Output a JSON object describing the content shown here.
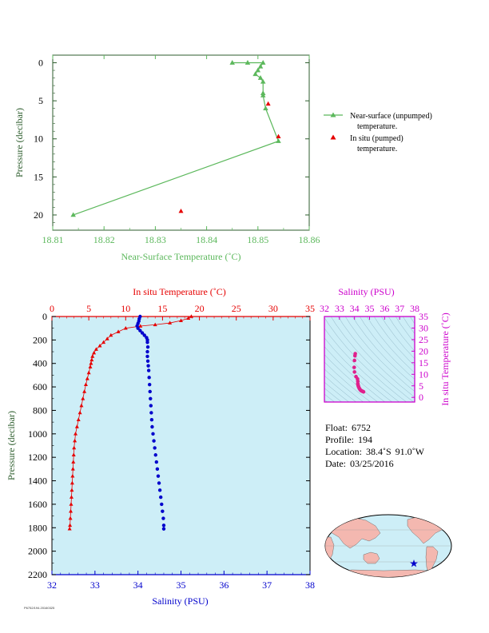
{
  "colors": {
    "near_surface": "#5cb85c",
    "in_situ_temp": "#e60000",
    "salinity": "#0000cc",
    "salinity_axis": "#cc00cc",
    "pressure_axis": "#2e5e2e",
    "profile_bg": "#cdeef7",
    "land": "#f4b8b0",
    "ocean": "#cdeef7"
  },
  "chart_data": [
    {
      "id": "near_surface_plot",
      "type": "line",
      "xlabel": "Near-Surface Temperature (˚C)",
      "ylabel": "Pressure (decibar)",
      "xlim": [
        18.81,
        18.86
      ],
      "ylim": [
        22,
        -1
      ],
      "xticks": [
        18.81,
        18.82,
        18.83,
        18.84,
        18.85,
        18.86
      ],
      "xtick_labels": [
        "18.81",
        "18.82",
        "18.83",
        "18.84",
        "18.85",
        "18.86"
      ],
      "yticks": [
        0,
        5,
        10,
        15,
        20
      ],
      "ytick_labels": [
        "0",
        "5",
        "10",
        "15",
        "20"
      ],
      "series": [
        {
          "name": "Near-surface (unpumped) temperature.",
          "marker": "triangle",
          "line": true,
          "points": [
            [
              18.845,
              0
            ],
            [
              18.848,
              0
            ],
            [
              18.851,
              0
            ],
            [
              18.8505,
              0.5
            ],
            [
              18.85,
              1
            ],
            [
              18.8495,
              1.5
            ],
            [
              18.8505,
              2
            ],
            [
              18.851,
              2.5
            ],
            [
              18.851,
              4
            ],
            [
              18.851,
              4.3
            ],
            [
              18.8515,
              6
            ],
            [
              18.854,
              10.3
            ],
            [
              18.814,
              20
            ]
          ]
        },
        {
          "name": "In situ (pumped) temperature.",
          "marker": "triangle",
          "line": false,
          "points": [
            [
              18.852,
              5.4
            ],
            [
              18.854,
              9.7
            ],
            [
              18.835,
              19.5
            ]
          ]
        }
      ],
      "legend": [
        "Near-surface (unpumped)",
        "temperature.",
        "In situ (pumped)",
        "temperature."
      ],
      "legend_placement": "right",
      "grid": false
    },
    {
      "id": "profile_plot",
      "type": "line",
      "xlabel_top": "In situ Temperature (˚C)",
      "xlabel_bottom": "Salinity (PSU)",
      "ylabel": "Pressure (decibar)",
      "temp_lim": [
        0,
        35
      ],
      "sal_lim": [
        32,
        38
      ],
      "pressure_lim": [
        0,
        2200
      ],
      "temp_ticks": [
        0,
        5,
        10,
        15,
        20,
        25,
        30,
        35
      ],
      "temp_tick_labels": [
        "0",
        "5",
        "10",
        "15",
        "20",
        "25",
        "30",
        "35"
      ],
      "sal_ticks": [
        32,
        33,
        34,
        35,
        36,
        37,
        38
      ],
      "sal_tick_labels": [
        "32",
        "33",
        "34",
        "35",
        "36",
        "37",
        "38"
      ],
      "pressure_ticks": [
        0,
        200,
        400,
        600,
        800,
        1000,
        1200,
        1400,
        1600,
        1800,
        2000,
        2200
      ],
      "pressure_tick_labels": [
        "0",
        "200",
        "400",
        "600",
        "800",
        "1000",
        "1200",
        "1400",
        "1600",
        "1800",
        "2000",
        "2200"
      ],
      "series": [
        {
          "name": "In situ Temperature",
          "marker": "triangle",
          "points": [
            [
              18.9,
              0
            ],
            [
              18.5,
              15
            ],
            [
              17.5,
              35
            ],
            [
              16,
              55
            ],
            [
              14,
              70
            ],
            [
              12,
              82
            ],
            [
              10,
              100
            ],
            [
              9,
              130
            ],
            [
              8,
              160
            ],
            [
              7.5,
              190
            ],
            [
              7,
              220
            ],
            [
              6.5,
              250
            ],
            [
              6,
              280
            ],
            [
              5.7,
              310
            ],
            [
              5.5,
              340
            ],
            [
              5.4,
              370
            ],
            [
              5.3,
              400
            ],
            [
              5.2,
              430
            ],
            [
              5,
              480
            ],
            [
              4.8,
              530
            ],
            [
              4.6,
              580
            ],
            [
              4.4,
              640
            ],
            [
              4.2,
              700
            ],
            [
              4,
              760
            ],
            [
              3.8,
              820
            ],
            [
              3.6,
              880
            ],
            [
              3.4,
              940
            ],
            [
              3.2,
              1000
            ],
            [
              3.1,
              1060
            ],
            [
              3,
              1120
            ],
            [
              2.95,
              1180
            ],
            [
              2.9,
              1240
            ],
            [
              2.85,
              1300
            ],
            [
              2.8,
              1360
            ],
            [
              2.75,
              1420
            ],
            [
              2.7,
              1480
            ],
            [
              2.65,
              1540
            ],
            [
              2.6,
              1600
            ],
            [
              2.55,
              1660
            ],
            [
              2.5,
              1720
            ],
            [
              2.45,
              1780
            ],
            [
              2.4,
              1810
            ]
          ]
        },
        {
          "name": "Salinity",
          "marker": "circle",
          "points": [
            [
              34.05,
              0
            ],
            [
              34.03,
              20
            ],
            [
              34.02,
              40
            ],
            [
              34.0,
              60
            ],
            [
              33.98,
              80
            ],
            [
              34.0,
              100
            ],
            [
              34.05,
              120
            ],
            [
              34.1,
              140
            ],
            [
              34.15,
              160
            ],
            [
              34.2,
              180
            ],
            [
              34.22,
              200
            ],
            [
              34.22,
              220
            ],
            [
              34.23,
              260
            ],
            [
              34.22,
              300
            ],
            [
              34.22,
              340
            ],
            [
              34.23,
              380
            ],
            [
              34.24,
              420
            ],
            [
              34.25,
              460
            ],
            [
              34.26,
              520
            ],
            [
              34.27,
              580
            ],
            [
              34.28,
              640
            ],
            [
              34.29,
              700
            ],
            [
              34.3,
              760
            ],
            [
              34.31,
              820
            ],
            [
              34.32,
              880
            ],
            [
              34.33,
              940
            ],
            [
              34.35,
              1000
            ],
            [
              34.37,
              1060
            ],
            [
              34.39,
              1120
            ],
            [
              34.41,
              1180
            ],
            [
              34.43,
              1240
            ],
            [
              34.45,
              1300
            ],
            [
              34.47,
              1360
            ],
            [
              34.49,
              1420
            ],
            [
              34.51,
              1480
            ],
            [
              34.53,
              1540
            ],
            [
              34.55,
              1600
            ],
            [
              34.57,
              1660
            ],
            [
              34.59,
              1720
            ],
            [
              34.6,
              1780
            ],
            [
              34.6,
              1810
            ]
          ]
        }
      ],
      "grid": false
    },
    {
      "id": "ts_plot",
      "type": "scatter",
      "xlabel": "Salinity (PSU)",
      "ylabel": "In situ Temperature (˚C)",
      "xlim": [
        32,
        38
      ],
      "ylim": [
        -2,
        35
      ],
      "xticks": [
        32,
        33,
        34,
        35,
        36,
        37,
        38
      ],
      "xtick_labels": [
        "32",
        "33",
        "34",
        "35",
        "36",
        "37",
        "38"
      ],
      "yticks": [
        0,
        5,
        10,
        15,
        20,
        25,
        30,
        35
      ],
      "ytick_labels": [
        "0",
        "5",
        "10",
        "15",
        "20",
        "25",
        "30",
        "35"
      ],
      "series": [
        {
          "name": "T-S profile",
          "marker": "circle",
          "points": [
            [
              34.05,
              18.9
            ],
            [
              34.03,
              18
            ],
            [
              34.0,
              16
            ],
            [
              33.98,
              13
            ],
            [
              34.0,
              11
            ],
            [
              34.1,
              9
            ],
            [
              34.2,
              8
            ],
            [
              34.22,
              7
            ],
            [
              34.22,
              6
            ],
            [
              34.23,
              5.5
            ],
            [
              34.25,
              5
            ],
            [
              34.27,
              4.6
            ],
            [
              34.3,
              4.2
            ],
            [
              34.33,
              3.8
            ],
            [
              34.37,
              3.4
            ],
            [
              34.41,
              3.1
            ],
            [
              34.45,
              2.9
            ],
            [
              34.5,
              2.7
            ],
            [
              34.55,
              2.6
            ],
            [
              34.6,
              2.4
            ]
          ]
        }
      ],
      "grid": false
    }
  ],
  "float_info": {
    "float_label": "Float:",
    "float_value": "6752",
    "profile_label": "Profile:",
    "profile_value": "194",
    "location_label": "Location:",
    "location_lat": "38.4˚S",
    "location_lon": "91.0˚W",
    "date_label": "Date:",
    "date_value": "03/25/2016"
  },
  "map": {
    "marker_symbol": "star",
    "marker_lon": -91.0,
    "marker_lat": -38.4
  },
  "footer": "P6752/194.20160325"
}
